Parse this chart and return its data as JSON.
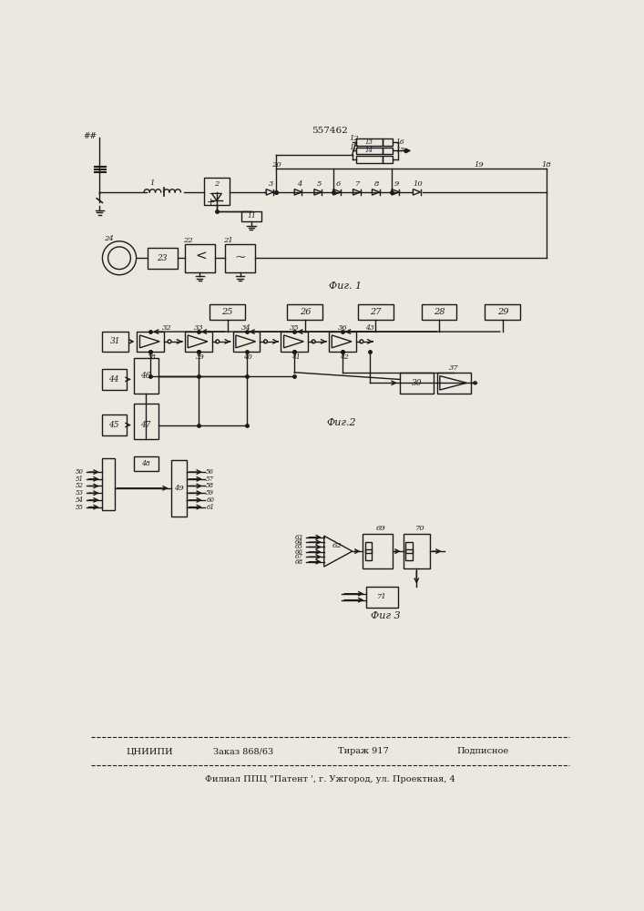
{
  "title": "557462",
  "fig1_label": "Фиг. 1",
  "fig2_label": "Фиг.2",
  "fig3_label": "Фиг 3",
  "footer_main": "ЦНИИПИ",
  "footer_order": "Заказ 868/63",
  "footer_tirazh": "Тираж 917",
  "footer_podp": "Подписное",
  "footer_bottom": "Филиал ППЦ \"Патент ', г. Ужгород, ул. Проектная, 4",
  "bg_color": "#ede8df",
  "line_color": "#1a1a1a"
}
